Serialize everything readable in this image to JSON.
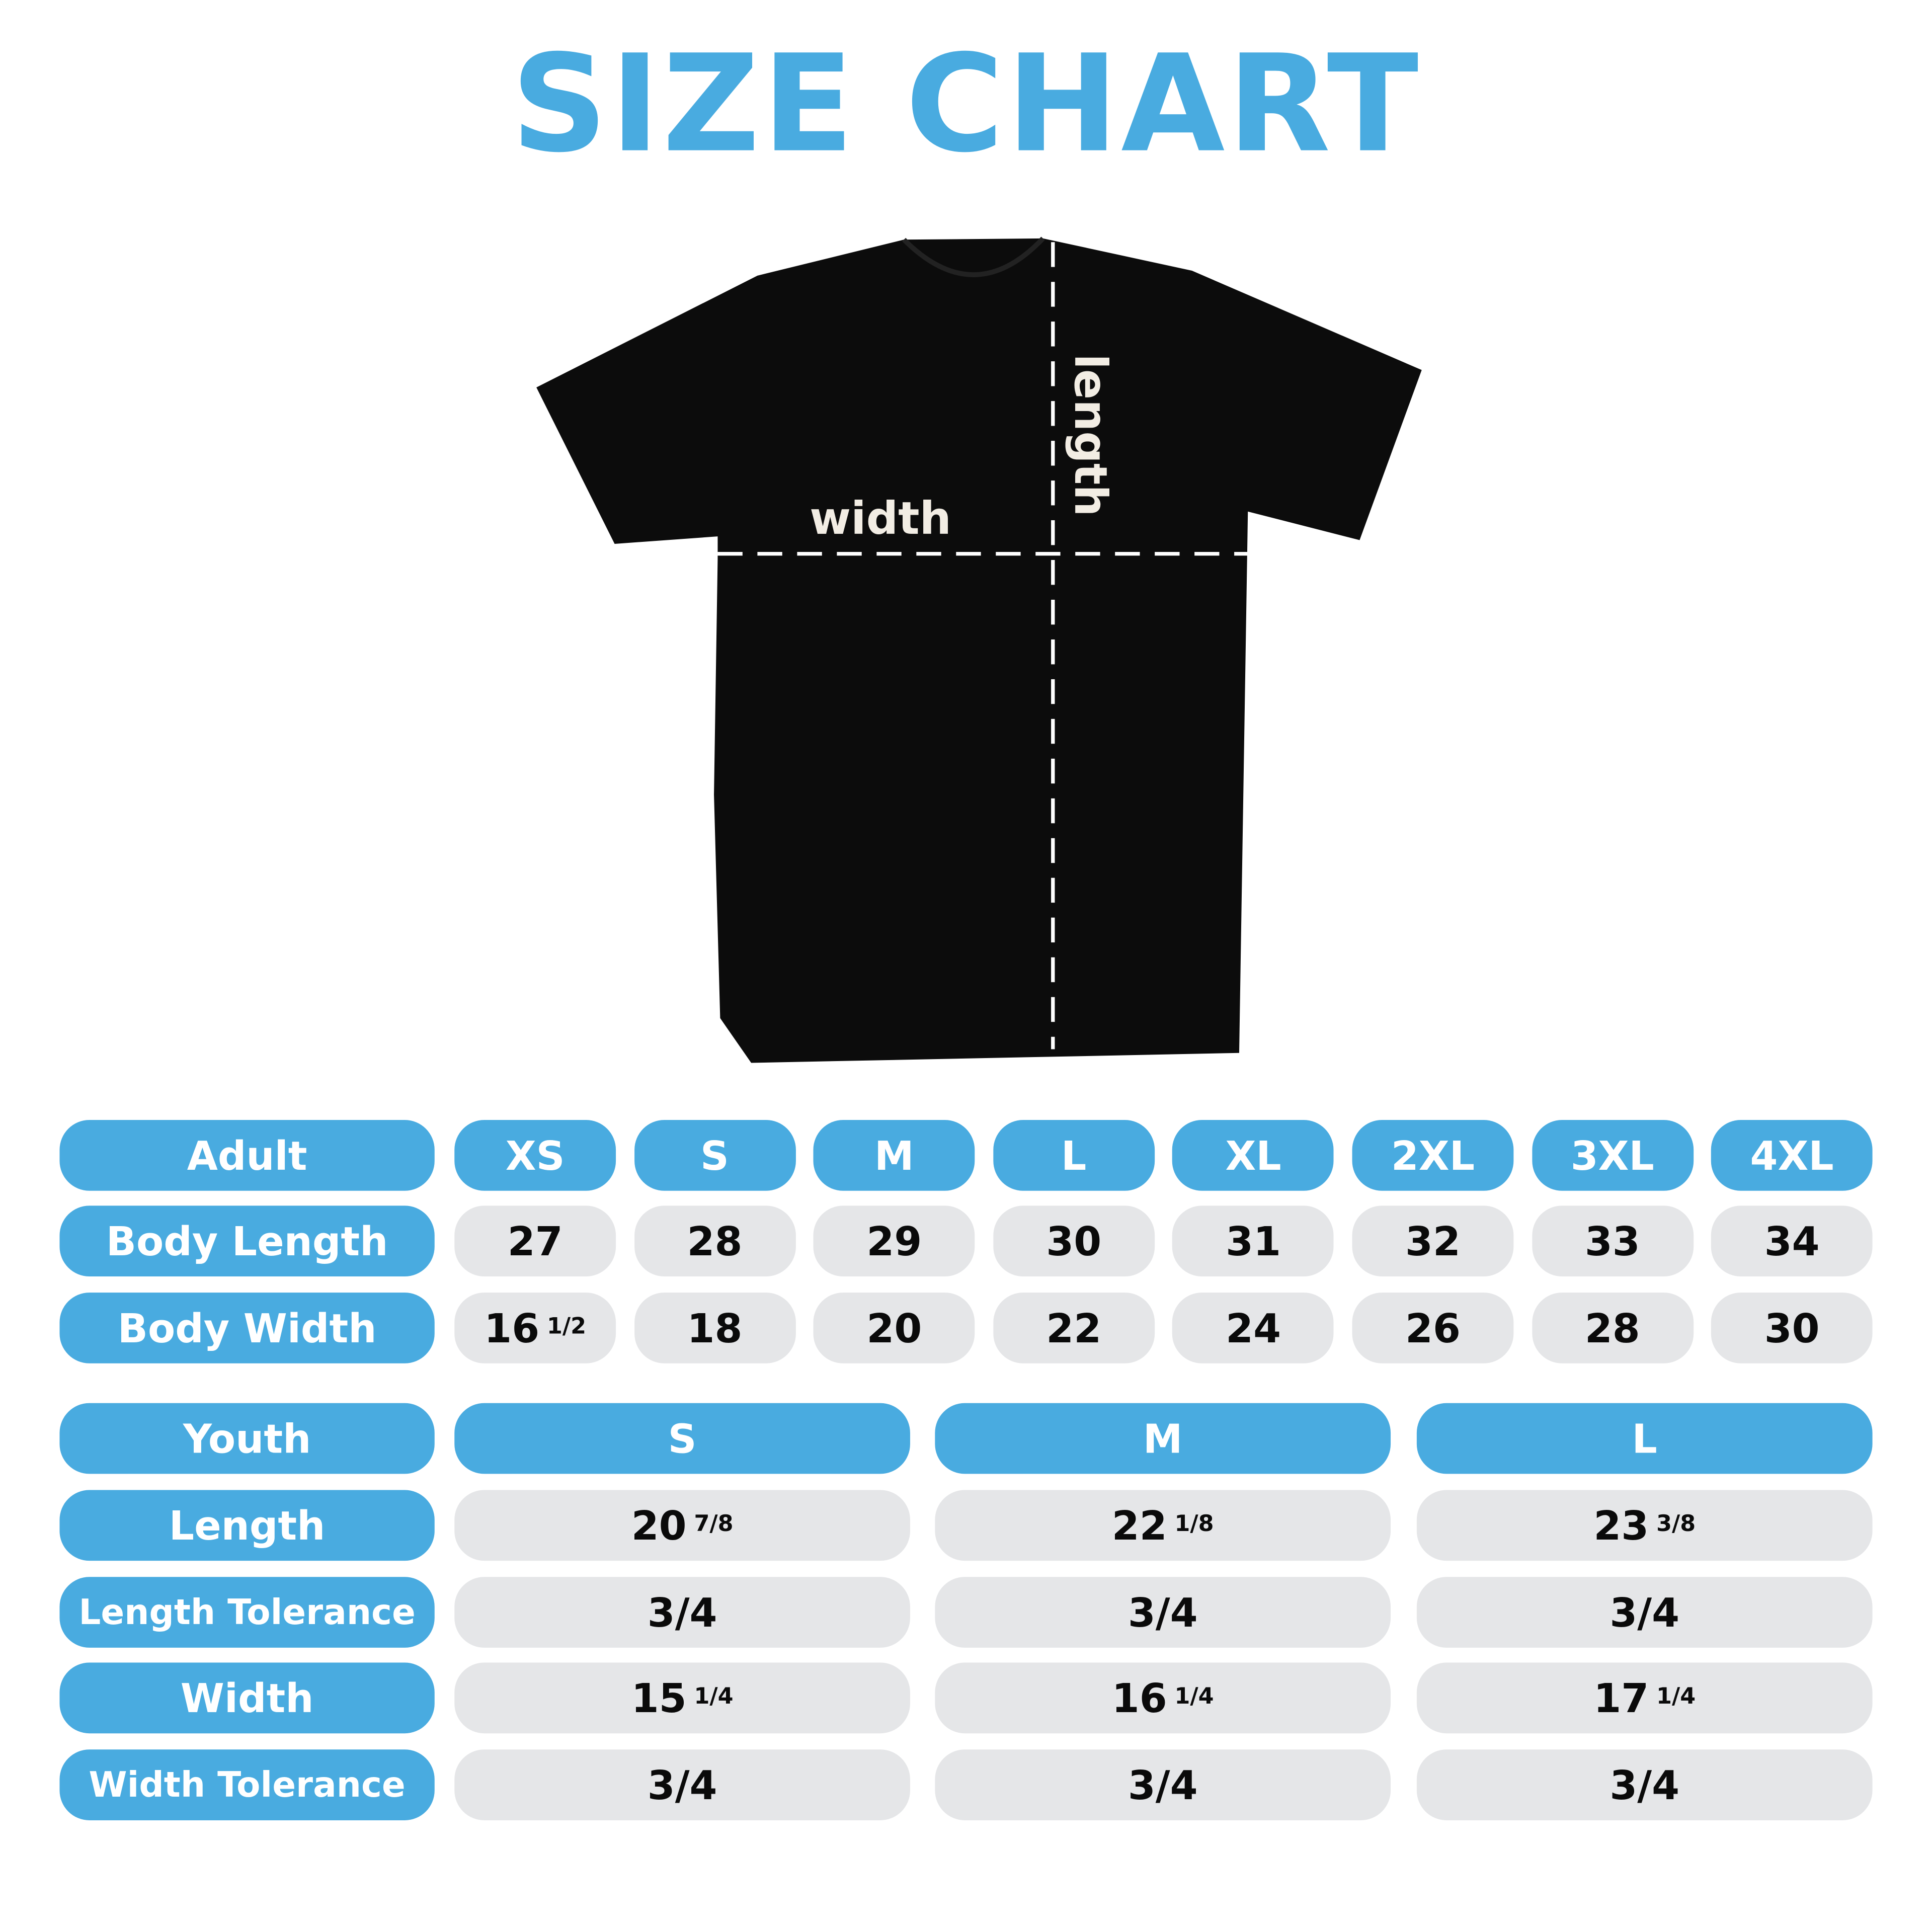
{
  "title": "SIZE CHART",
  "shirt": {
    "width_label": "width",
    "length_label": "length",
    "color": "#0c0c0c"
  },
  "colors": {
    "accent": "#49abe0",
    "cell": "#e5e6e8"
  },
  "adult": {
    "header": "Adult",
    "sizes": [
      "XS",
      "S",
      "M",
      "L",
      "XL",
      "2XL",
      "3XL",
      "4XL"
    ],
    "rows": [
      {
        "label": "Body Length",
        "values": [
          {
            "whole": "27"
          },
          {
            "whole": "28"
          },
          {
            "whole": "29"
          },
          {
            "whole": "30"
          },
          {
            "whole": "31"
          },
          {
            "whole": "32"
          },
          {
            "whole": "33"
          },
          {
            "whole": "34"
          }
        ]
      },
      {
        "label": "Body Width",
        "values": [
          {
            "whole": "16",
            "frac": "1/2"
          },
          {
            "whole": "18"
          },
          {
            "whole": "20"
          },
          {
            "whole": "22"
          },
          {
            "whole": "24"
          },
          {
            "whole": "26"
          },
          {
            "whole": "28"
          },
          {
            "whole": "30"
          }
        ]
      }
    ]
  },
  "youth": {
    "header": "Youth",
    "sizes": [
      "S",
      "M",
      "L"
    ],
    "rows": [
      {
        "label": "Length",
        "values": [
          {
            "whole": "20",
            "frac": "7/8"
          },
          {
            "whole": "22",
            "frac": "1/8"
          },
          {
            "whole": "23",
            "frac": "3/8"
          }
        ]
      },
      {
        "label": "Length Tolerance",
        "values": [
          {
            "whole": "3/4"
          },
          {
            "whole": "3/4"
          },
          {
            "whole": "3/4"
          }
        ]
      },
      {
        "label": "Width",
        "values": [
          {
            "whole": "15",
            "frac": "1/4"
          },
          {
            "whole": "16",
            "frac": "1/4"
          },
          {
            "whole": "17",
            "frac": "1/4"
          }
        ]
      },
      {
        "label": "Width Tolerance",
        "values": [
          {
            "whole": "3/4"
          },
          {
            "whole": "3/4"
          },
          {
            "whole": "3/4"
          }
        ]
      }
    ]
  }
}
